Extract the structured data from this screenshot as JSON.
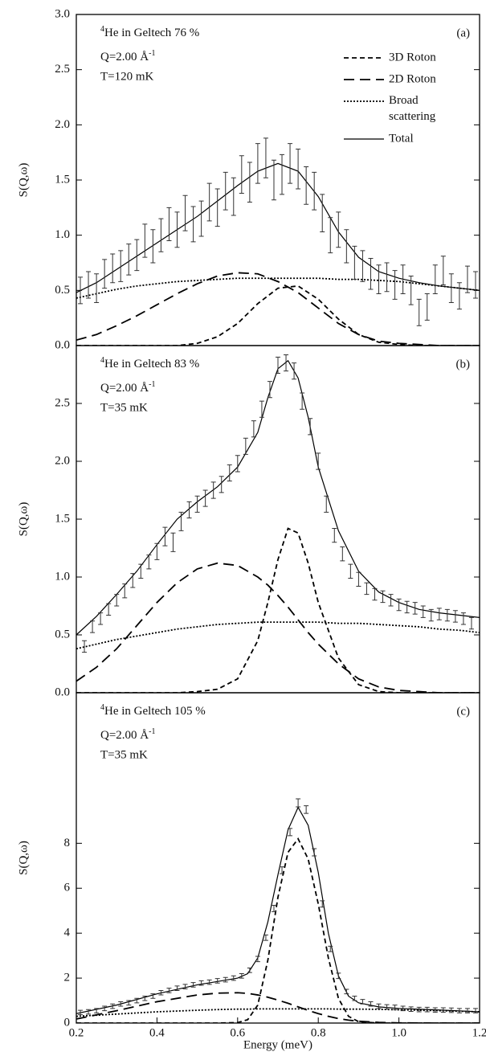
{
  "chart_data": [
    {
      "type": "line",
      "panel_label": "(a)",
      "annotation": {
        "isotope_mass": "4",
        "sample": "He in Geltech 76 %",
        "q_label": "Q=2.00 Å",
        "q_exponent": "-1",
        "temperature": "T=120 mK"
      },
      "ylabel": "S(Q,ω)",
      "xlim": [
        0.2,
        1.2
      ],
      "ylim": [
        0,
        3
      ],
      "yticks": [
        {
          "value": 0,
          "label": "0.0"
        },
        0.5,
        {
          "value": 1,
          "label": "1.0"
        },
        1.5,
        {
          "value": 2,
          "label": "2.0"
        },
        2.5,
        {
          "value": 3,
          "label": "3.0"
        }
      ],
      "legend": "upper right",
      "grid": false,
      "x": [
        0.2,
        0.25,
        0.3,
        0.35,
        0.4,
        0.45,
        0.5,
        0.55,
        0.6,
        0.65,
        0.7,
        0.75,
        0.8,
        0.85,
        0.9,
        0.95,
        1.0,
        1.05,
        1.1,
        1.15,
        1.2
      ],
      "series": [
        {
          "name": "3D Roton",
          "color": "#000000",
          "style": "dashed",
          "values": [
            0,
            0,
            0,
            0,
            0,
            0,
            0.02,
            0.08,
            0.2,
            0.38,
            0.52,
            0.54,
            0.42,
            0.24,
            0.1,
            0.03,
            0.01,
            0,
            0,
            0,
            0
          ]
        },
        {
          "name": "2D Roton",
          "color": "#000000",
          "style": "long-dashed",
          "values": [
            0.05,
            0.1,
            0.18,
            0.27,
            0.37,
            0.47,
            0.56,
            0.63,
            0.66,
            0.65,
            0.58,
            0.48,
            0.34,
            0.2,
            0.1,
            0.04,
            0.02,
            0.01,
            0,
            0,
            0
          ]
        },
        {
          "name": "Broad scattering",
          "color": "#000000",
          "style": "dotted",
          "values": [
            0.43,
            0.47,
            0.51,
            0.54,
            0.56,
            0.58,
            0.59,
            0.6,
            0.61,
            0.61,
            0.61,
            0.61,
            0.61,
            0.6,
            0.6,
            0.59,
            0.58,
            0.56,
            0.54,
            0.52,
            0.5
          ]
        },
        {
          "name": "Total",
          "color": "#000000",
          "style": "solid",
          "values": [
            0.48,
            0.57,
            0.69,
            0.81,
            0.93,
            1.05,
            1.17,
            1.31,
            1.45,
            1.58,
            1.65,
            1.58,
            1.35,
            1.03,
            0.8,
            0.67,
            0.61,
            0.57,
            0.54,
            0.52,
            0.5
          ]
        }
      ],
      "points": {
        "color": "#333333",
        "x": [
          0.21,
          0.23,
          0.25,
          0.27,
          0.29,
          0.31,
          0.33,
          0.35,
          0.37,
          0.39,
          0.41,
          0.43,
          0.45,
          0.47,
          0.49,
          0.51,
          0.53,
          0.55,
          0.57,
          0.59,
          0.61,
          0.63,
          0.65,
          0.67,
          0.69,
          0.71,
          0.73,
          0.75,
          0.77,
          0.79,
          0.81,
          0.83,
          0.85,
          0.87,
          0.89,
          0.91,
          0.93,
          0.95,
          0.97,
          0.99,
          1.01,
          1.03,
          1.05,
          1.07,
          1.09,
          1.11,
          1.13,
          1.15,
          1.17,
          1.19
        ],
        "values": [
          0.5,
          0.55,
          0.52,
          0.65,
          0.7,
          0.72,
          0.78,
          0.82,
          0.95,
          0.9,
          1.0,
          1.1,
          1.05,
          1.2,
          1.1,
          1.15,
          1.3,
          1.25,
          1.4,
          1.35,
          1.55,
          1.48,
          1.65,
          1.7,
          1.5,
          1.55,
          1.65,
          1.6,
          1.45,
          1.4,
          1.2,
          1.0,
          1.05,
          0.9,
          0.75,
          0.72,
          0.65,
          0.6,
          0.62,
          0.55,
          0.6,
          0.5,
          0.3,
          0.35,
          0.6,
          0.68,
          0.52,
          0.45,
          0.6,
          0.55
        ],
        "errors": [
          0.12,
          0.12,
          0.13,
          0.13,
          0.13,
          0.14,
          0.14,
          0.14,
          0.15,
          0.15,
          0.15,
          0.15,
          0.16,
          0.16,
          0.16,
          0.16,
          0.17,
          0.17,
          0.17,
          0.17,
          0.17,
          0.18,
          0.18,
          0.18,
          0.18,
          0.18,
          0.18,
          0.18,
          0.17,
          0.17,
          0.17,
          0.16,
          0.16,
          0.15,
          0.15,
          0.14,
          0.14,
          0.13,
          0.13,
          0.13,
          0.13,
          0.13,
          0.12,
          0.12,
          0.13,
          0.13,
          0.13,
          0.12,
          0.12,
          0.12
        ]
      }
    },
    {
      "type": "line",
      "panel_label": "(b)",
      "annotation": {
        "isotope_mass": "4",
        "sample": "He in Geltech 83 %",
        "q_label": "Q=2.00 Å",
        "q_exponent": "-1",
        "temperature": "T=35 mK"
      },
      "ylabel": "S(Q,ω)",
      "xlim": [
        0.2,
        1.2
      ],
      "ylim": [
        0,
        3
      ],
      "yticks": [
        {
          "value": 0,
          "label": "0.0"
        },
        0.5,
        {
          "value": 1,
          "label": "1.0"
        },
        1.5,
        {
          "value": 2,
          "label": "2.0"
        },
        2.5
      ],
      "grid": false,
      "x": [
        0.2,
        0.25,
        0.3,
        0.35,
        0.4,
        0.45,
        0.5,
        0.55,
        0.6,
        0.65,
        0.675,
        0.7,
        0.725,
        0.75,
        0.775,
        0.8,
        0.85,
        0.9,
        0.95,
        1.0,
        1.05,
        1.1,
        1.15,
        1.2
      ],
      "series": [
        {
          "color": "#000000",
          "style": "dashed",
          "values": [
            0,
            0,
            0,
            0,
            0,
            0,
            0.01,
            0.03,
            0.12,
            0.45,
            0.78,
            1.15,
            1.42,
            1.38,
            1.12,
            0.78,
            0.3,
            0.07,
            0.01,
            0,
            0,
            0,
            0,
            0
          ]
        },
        {
          "color": "#000000",
          "style": "long-dashed",
          "values": [
            0.1,
            0.22,
            0.38,
            0.58,
            0.78,
            0.95,
            1.07,
            1.12,
            1.1,
            1.0,
            0.93,
            0.84,
            0.74,
            0.63,
            0.52,
            0.42,
            0.25,
            0.12,
            0.05,
            0.02,
            0.01,
            0,
            0,
            0
          ]
        },
        {
          "color": "#000000",
          "style": "dotted",
          "values": [
            0.38,
            0.42,
            0.46,
            0.49,
            0.52,
            0.55,
            0.57,
            0.59,
            0.6,
            0.61,
            0.61,
            0.61,
            0.61,
            0.61,
            0.61,
            0.61,
            0.6,
            0.6,
            0.59,
            0.58,
            0.57,
            0.55,
            0.54,
            0.52
          ]
        },
        {
          "color": "#000000",
          "style": "solid",
          "values": [
            0.5,
            0.66,
            0.85,
            1.05,
            1.28,
            1.5,
            1.65,
            1.78,
            1.95,
            2.25,
            2.55,
            2.8,
            2.87,
            2.72,
            2.38,
            1.95,
            1.4,
            1.05,
            0.87,
            0.78,
            0.72,
            0.69,
            0.67,
            0.65
          ]
        }
      ],
      "points": {
        "color": "#333333",
        "x": [
          0.22,
          0.24,
          0.26,
          0.28,
          0.3,
          0.32,
          0.34,
          0.36,
          0.38,
          0.4,
          0.42,
          0.44,
          0.46,
          0.48,
          0.5,
          0.52,
          0.54,
          0.56,
          0.58,
          0.6,
          0.62,
          0.64,
          0.66,
          0.68,
          0.7,
          0.72,
          0.74,
          0.76,
          0.78,
          0.8,
          0.82,
          0.84,
          0.86,
          0.88,
          0.9,
          0.92,
          0.94,
          0.96,
          0.98,
          1.0,
          1.02,
          1.04,
          1.06,
          1.08,
          1.1,
          1.12,
          1.14,
          1.16,
          1.18
        ],
        "values": [
          0.4,
          0.57,
          0.64,
          0.72,
          0.8,
          0.88,
          0.97,
          1.05,
          1.13,
          1.22,
          1.35,
          1.3,
          1.48,
          1.58,
          1.63,
          1.68,
          1.75,
          1.8,
          1.9,
          1.98,
          2.13,
          2.28,
          2.45,
          2.62,
          2.83,
          2.85,
          2.78,
          2.52,
          2.3,
          2.0,
          1.63,
          1.36,
          1.2,
          1.05,
          0.98,
          0.9,
          0.85,
          0.83,
          0.8,
          0.76,
          0.74,
          0.73,
          0.7,
          0.67,
          0.68,
          0.67,
          0.66,
          0.64,
          0.6
        ],
        "errors": [
          0.05,
          0.05,
          0.05,
          0.05,
          0.05,
          0.06,
          0.06,
          0.06,
          0.06,
          0.07,
          0.08,
          0.08,
          0.08,
          0.07,
          0.07,
          0.07,
          0.07,
          0.07,
          0.07,
          0.07,
          0.07,
          0.07,
          0.07,
          0.07,
          0.07,
          0.07,
          0.07,
          0.07,
          0.07,
          0.07,
          0.07,
          0.06,
          0.06,
          0.06,
          0.06,
          0.05,
          0.05,
          0.05,
          0.05,
          0.05,
          0.05,
          0.05,
          0.05,
          0.05,
          0.05,
          0.05,
          0.05,
          0.05,
          0.05
        ]
      }
    },
    {
      "type": "line",
      "panel_label": "(c)",
      "annotation": {
        "isotope_mass": "4",
        "sample": "He in Geltech 105 %",
        "q_label": "Q=2.00 Å",
        "q_exponent": "-1",
        "temperature": "T=35 mK"
      },
      "ylabel": "S(Q,ω)",
      "xlabel": "Energy (meV)",
      "xlim": [
        0.2,
        1.2
      ],
      "ylim": [
        0,
        14.7
      ],
      "xticks": [
        0.2,
        0.4,
        0.6,
        0.8,
        {
          "value": 1,
          "label": "1.0"
        },
        1.2
      ],
      "yticks": [
        0,
        2,
        4,
        6,
        8
      ],
      "grid": false,
      "x": [
        0.2,
        0.3,
        0.4,
        0.5,
        0.55,
        0.6,
        0.625,
        0.65,
        0.675,
        0.7,
        0.725,
        0.75,
        0.775,
        0.8,
        0.825,
        0.85,
        0.875,
        0.9,
        0.95,
        1.0,
        1.1,
        1.2
      ],
      "series": [
        {
          "color": "#000000",
          "style": "dashed",
          "values": [
            0,
            0,
            0,
            0,
            0,
            0.02,
            0.15,
            0.8,
            2.8,
            5.6,
            7.6,
            8.2,
            7.3,
            5.3,
            2.9,
            1.1,
            0.3,
            0.06,
            0,
            0,
            0,
            0
          ]
        },
        {
          "color": "#000000",
          "style": "long-dashed",
          "values": [
            0.18,
            0.55,
            0.95,
            1.25,
            1.33,
            1.35,
            1.32,
            1.25,
            1.15,
            1.02,
            0.88,
            0.72,
            0.56,
            0.42,
            0.3,
            0.2,
            0.13,
            0.08,
            0.03,
            0.01,
            0,
            0
          ]
        },
        {
          "color": "#000000",
          "style": "dotted",
          "values": [
            0.3,
            0.4,
            0.5,
            0.57,
            0.6,
            0.62,
            0.62,
            0.63,
            0.63,
            0.63,
            0.63,
            0.63,
            0.63,
            0.63,
            0.63,
            0.62,
            0.62,
            0.62,
            0.61,
            0.59,
            0.55,
            0.5
          ]
        },
        {
          "color": "#000000",
          "style": "solid",
          "values": [
            0.42,
            0.8,
            1.3,
            1.7,
            1.85,
            2.0,
            2.2,
            2.9,
            4.5,
            6.6,
            8.6,
            9.6,
            8.8,
            6.7,
            4.0,
            2.1,
            1.2,
            0.9,
            0.72,
            0.65,
            0.58,
            0.5
          ]
        }
      ],
      "points": {
        "color": "#333333",
        "x": [
          0.21,
          0.23,
          0.25,
          0.27,
          0.29,
          0.31,
          0.33,
          0.35,
          0.37,
          0.39,
          0.41,
          0.43,
          0.45,
          0.47,
          0.49,
          0.51,
          0.53,
          0.55,
          0.57,
          0.59,
          0.61,
          0.63,
          0.65,
          0.67,
          0.69,
          0.71,
          0.73,
          0.75,
          0.77,
          0.79,
          0.81,
          0.83,
          0.85,
          0.87,
          0.89,
          0.91,
          0.93,
          0.95,
          0.97,
          0.99,
          1.01,
          1.03,
          1.05,
          1.07,
          1.09,
          1.11,
          1.13,
          1.15,
          1.17,
          1.19
        ],
        "values": [
          0.47,
          0.5,
          0.55,
          0.65,
          0.75,
          0.85,
          0.9,
          1.0,
          1.1,
          1.2,
          1.35,
          1.45,
          1.55,
          1.62,
          1.7,
          1.78,
          1.82,
          1.88,
          1.93,
          2.0,
          2.1,
          2.35,
          2.85,
          3.8,
          5.1,
          6.8,
          8.5,
          9.8,
          9.5,
          7.6,
          5.3,
          3.3,
          2.1,
          1.4,
          1.1,
          0.95,
          0.85,
          0.75,
          0.72,
          0.7,
          0.65,
          0.62,
          0.6,
          0.6,
          0.58,
          0.58,
          0.57,
          0.55,
          0.55,
          0.55
        ],
        "errors": [
          0.1,
          0.1,
          0.1,
          0.1,
          0.1,
          0.1,
          0.1,
          0.1,
          0.1,
          0.1,
          0.1,
          0.1,
          0.1,
          0.1,
          0.1,
          0.1,
          0.1,
          0.1,
          0.1,
          0.1,
          0.1,
          0.1,
          0.12,
          0.12,
          0.14,
          0.15,
          0.16,
          0.18,
          0.17,
          0.16,
          0.14,
          0.12,
          0.12,
          0.1,
          0.1,
          0.1,
          0.1,
          0.1,
          0.1,
          0.1,
          0.1,
          0.1,
          0.1,
          0.1,
          0.1,
          0.1,
          0.1,
          0.1,
          0.1,
          0.1
        ]
      }
    }
  ]
}
